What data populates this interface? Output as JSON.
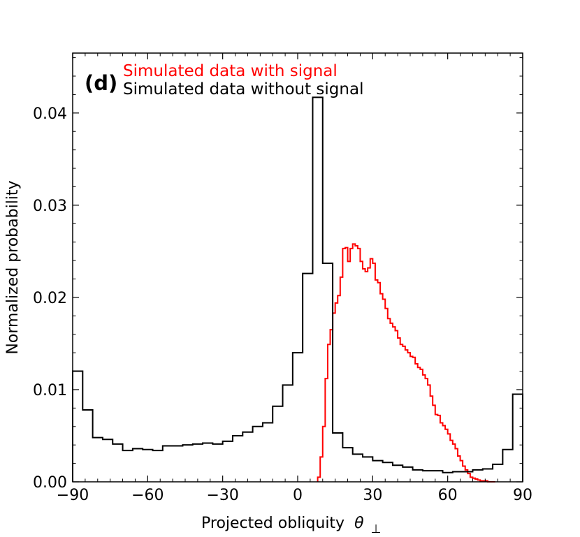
{
  "chart_data": {
    "type": "histogram",
    "panel_label": "(d)",
    "xlabel": "Projected obliquity",
    "xlabel_symbol": "θ",
    "xlabel_subscript": "⊥",
    "ylabel": "Normalized probability",
    "xlim": [
      -90,
      90
    ],
    "ylim": [
      0,
      0.0465
    ],
    "xticks": [
      -90,
      -60,
      -30,
      0,
      30,
      60,
      90
    ],
    "xtick_labels": [
      "−90",
      "−60",
      "−30",
      "0",
      "30",
      "60",
      "90"
    ],
    "yticks": [
      0,
      0.01,
      0.02,
      0.03,
      0.04
    ],
    "ytick_labels": [
      "0.00",
      "0.01",
      "0.02",
      "0.03",
      "0.04"
    ],
    "legend_position": "top-left",
    "series": [
      {
        "name": "Simulated data with signal",
        "color": "#ff0000",
        "bin_edges": [
          8,
          9,
          10,
          11,
          12,
          13,
          14,
          15,
          16,
          17,
          18,
          19,
          20,
          21,
          22,
          23,
          24,
          25,
          26,
          27,
          28,
          29,
          30,
          31,
          32,
          33,
          34,
          35,
          36,
          37,
          38,
          39,
          40,
          41,
          42,
          43,
          44,
          45,
          46,
          47,
          48,
          49,
          50,
          51,
          52,
          53,
          54,
          55,
          56,
          57,
          58,
          59,
          60,
          61,
          62,
          63,
          64,
          65,
          66,
          67,
          68,
          69,
          70,
          71,
          72,
          73,
          74,
          75,
          76,
          77,
          78,
          79
        ],
        "values": [
          0.0005,
          0.0027,
          0.006,
          0.0112,
          0.0149,
          0.0165,
          0.0183,
          0.0194,
          0.0202,
          0.0222,
          0.0253,
          0.0254,
          0.0239,
          0.0253,
          0.0258,
          0.0256,
          0.0253,
          0.0239,
          0.0231,
          0.0228,
          0.0232,
          0.0242,
          0.0237,
          0.0219,
          0.0216,
          0.0204,
          0.0198,
          0.0188,
          0.0177,
          0.0172,
          0.0168,
          0.0164,
          0.0156,
          0.0149,
          0.0147,
          0.0143,
          0.014,
          0.0136,
          0.0135,
          0.0128,
          0.0124,
          0.0122,
          0.0116,
          0.0112,
          0.0105,
          0.0093,
          0.0083,
          0.0073,
          0.0072,
          0.0064,
          0.0061,
          0.0057,
          0.0052,
          0.0045,
          0.0041,
          0.0036,
          0.0028,
          0.0023,
          0.0017,
          0.0013,
          0.0009,
          0.0005,
          0.0004,
          0.0003,
          0.0002,
          0.0001,
          0.0001,
          0.0001,
          0.0,
          0.0,
          0.0
        ]
      },
      {
        "name": "Simulated data without signal",
        "color": "#000000",
        "bin_edges": [
          -90,
          -86,
          -82,
          -78,
          -74,
          -70,
          -66,
          -62,
          -58,
          -54,
          -50,
          -46,
          -42,
          -38,
          -34,
          -30,
          -26,
          -22,
          -18,
          -14,
          -10,
          -6,
          -2,
          2,
          6,
          10,
          14,
          18,
          22,
          26,
          30,
          34,
          38,
          42,
          46,
          50,
          54,
          58,
          62,
          66,
          70,
          74,
          78,
          82,
          86,
          90
        ],
        "values": [
          0.012,
          0.0078,
          0.0048,
          0.0046,
          0.0041,
          0.0034,
          0.0036,
          0.0035,
          0.0034,
          0.0039,
          0.0039,
          0.004,
          0.0041,
          0.0042,
          0.0041,
          0.0044,
          0.005,
          0.0054,
          0.006,
          0.0064,
          0.0082,
          0.0105,
          0.014,
          0.0226,
          0.0417,
          0.0237,
          0.0053,
          0.0037,
          0.003,
          0.0027,
          0.0023,
          0.0021,
          0.0018,
          0.0016,
          0.0013,
          0.0012,
          0.0012,
          0.001,
          0.0011,
          0.0011,
          0.0013,
          0.0014,
          0.0019,
          0.0035,
          0.0095
        ]
      }
    ]
  }
}
